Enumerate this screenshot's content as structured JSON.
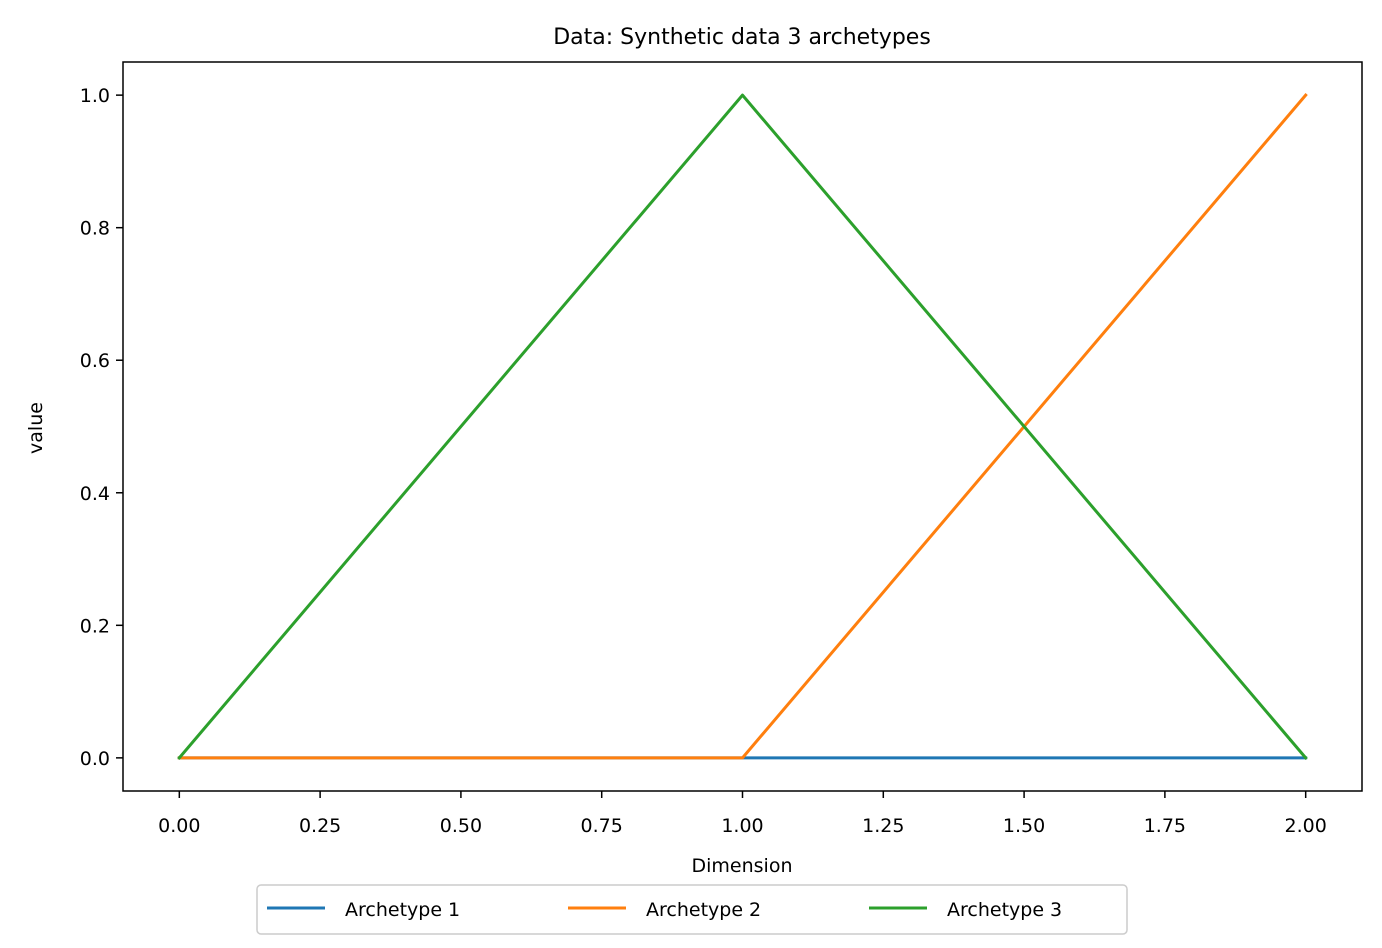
{
  "chart_data": {
    "type": "line",
    "title": "Data: Synthetic data 3 archetypes",
    "xlabel": "Dimension",
    "ylabel": "value",
    "xlim": [
      -0.1,
      2.1
    ],
    "ylim": [
      -0.05,
      1.05
    ],
    "x_ticks": [
      "0.00",
      "0.25",
      "0.50",
      "0.75",
      "1.00",
      "1.25",
      "1.50",
      "1.75",
      "2.00"
    ],
    "y_ticks": [
      "0.0",
      "0.2",
      "0.4",
      "0.6",
      "0.8",
      "1.0"
    ],
    "grid": false,
    "legend_position": "bottom-center",
    "x": [
      0,
      1,
      2
    ],
    "series": [
      {
        "name": "Archetype 1",
        "color": "#1f77b4",
        "values": [
          0,
          0,
          0
        ]
      },
      {
        "name": "Archetype 2",
        "color": "#ff7f0e",
        "values": [
          0,
          0,
          1
        ]
      },
      {
        "name": "Archetype 3",
        "color": "#2ca02c",
        "values": [
          0,
          1,
          0
        ]
      }
    ]
  }
}
